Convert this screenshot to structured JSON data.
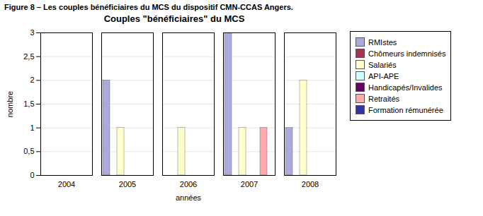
{
  "chart_data": {
    "type": "bar",
    "subtitle": "Figure 8 – Les couples bénéficiaires du MCS du dispositif CMN-CCAS Angers.",
    "title": "Couples \"bénéficiaires\" du MCS",
    "x_label": "années",
    "y_label": "nombre",
    "categories": [
      "2004",
      "2005",
      "2006",
      "2007",
      "2008"
    ],
    "series": [
      {
        "name": "RMIstes",
        "color": "#aaaadd",
        "values": [
          0,
          2,
          0,
          3,
          1
        ]
      },
      {
        "name": "Chômeurs indemnisés",
        "color": "#aa3355",
        "values": [
          0,
          0,
          0,
          0,
          0
        ]
      },
      {
        "name": "Salariés",
        "color": "#ffffcc",
        "values": [
          0,
          1,
          1,
          1,
          2
        ]
      },
      {
        "name": "API-APE",
        "color": "#ccffff",
        "values": [
          0,
          0,
          0,
          0,
          0
        ]
      },
      {
        "name": "Handicapés/Invalides",
        "color": "#660066",
        "values": [
          0,
          0,
          0,
          0,
          0
        ]
      },
      {
        "name": "Retraités",
        "color": "#ffaaaa",
        "values": [
          0,
          0,
          0,
          1,
          0
        ]
      },
      {
        "name": "Formation rémunérée",
        "color": "#3333aa",
        "values": [
          0,
          0,
          0,
          0,
          0
        ]
      }
    ],
    "ylim": [
      0,
      3
    ],
    "yticks": [
      0,
      {
        "value": 0.5,
        "label": "0,5"
      },
      1,
      {
        "value": 1.5,
        "label": "1,5"
      },
      2,
      {
        "value": 2.5,
        "label": "2,5"
      },
      3
    ],
    "grid": true,
    "legend": "right"
  }
}
